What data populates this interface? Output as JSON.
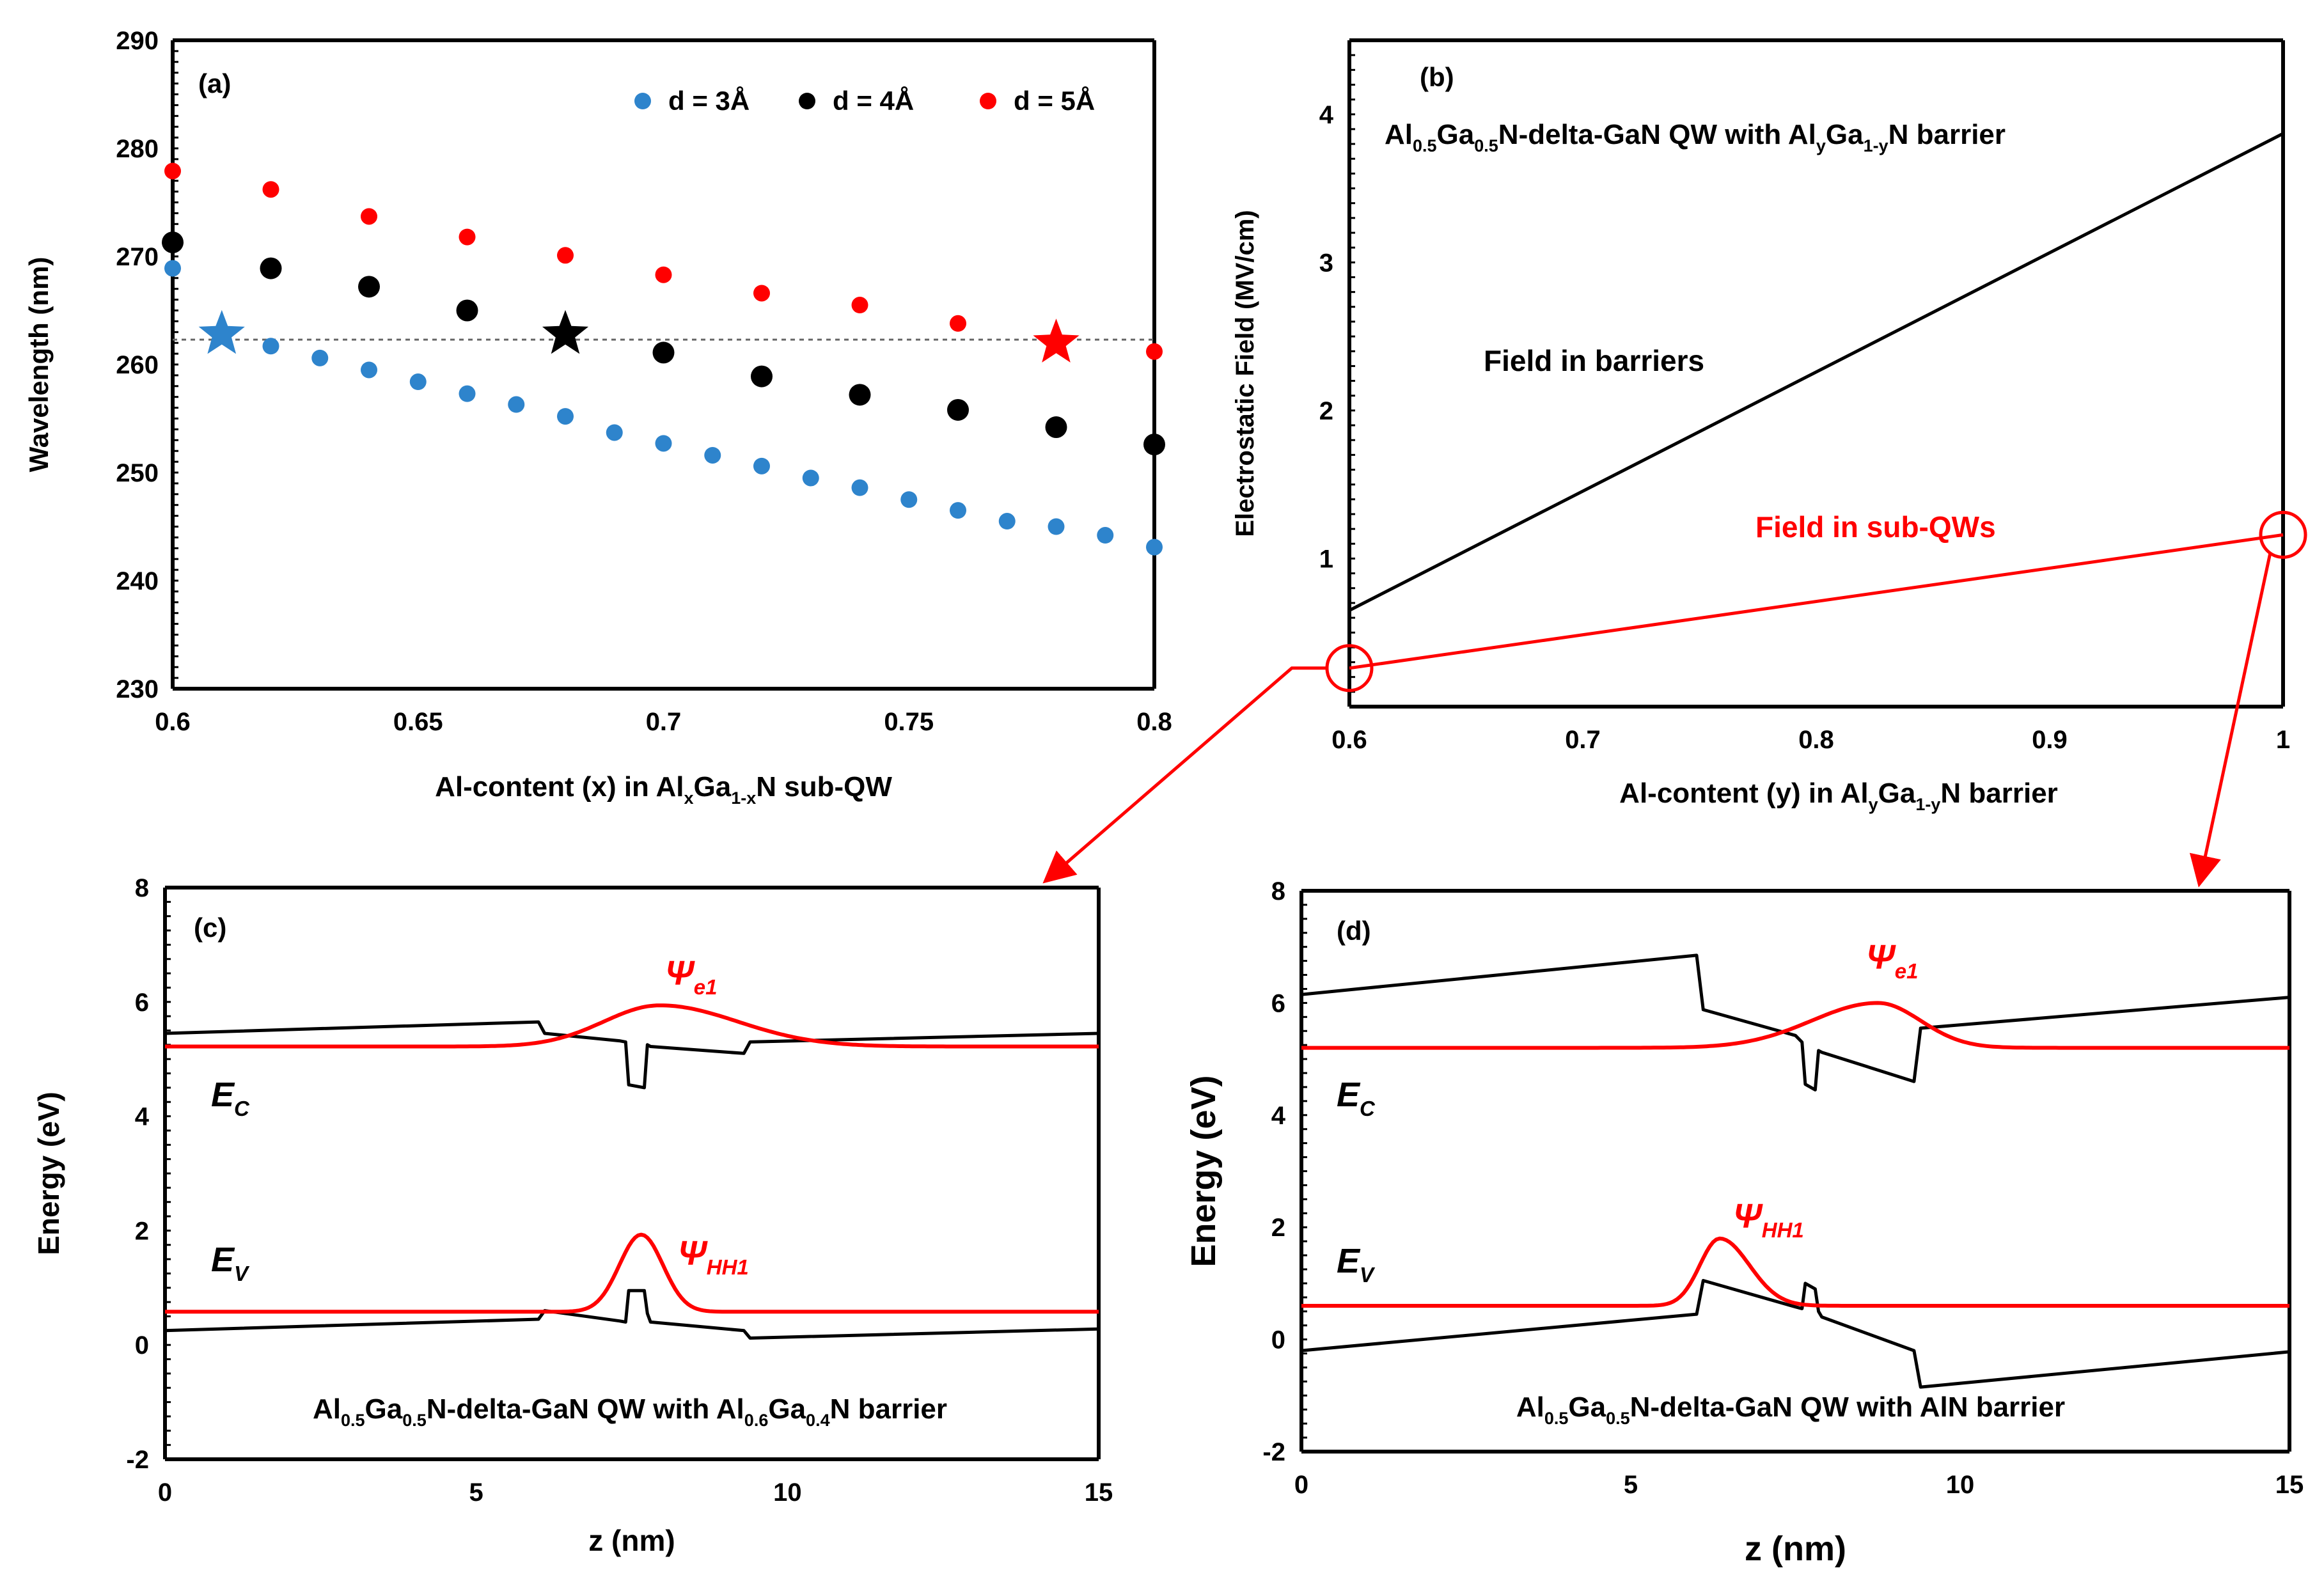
{
  "chart_data": [
    {
      "panel": "(a)",
      "type": "scatter",
      "xlabel_parts": [
        "Al-content (x) in Al",
        "x",
        "Ga",
        "1-x",
        "N sub-QW"
      ],
      "ylabel": "Wavelength (nm)",
      "xlim": [
        0.6,
        0.8
      ],
      "ylim": [
        230,
        290
      ],
      "xticks": [
        "0.6",
        "0.65",
        "0.7",
        "0.75",
        "0.8"
      ],
      "yticks": [
        "230",
        "240",
        "250",
        "260",
        "270",
        "280",
        "290"
      ],
      "reference_line_y": 262.3,
      "series": [
        {
          "name": "d = 3Å",
          "color": "#2e84cc",
          "x": [
            0.6,
            0.62,
            0.63,
            0.64,
            0.65,
            0.66,
            0.67,
            0.68,
            0.69,
            0.7,
            0.71,
            0.72,
            0.73,
            0.74,
            0.75,
            0.76,
            0.77,
            0.78,
            0.79,
            0.8
          ],
          "y": [
            268.9,
            261.7,
            260.6,
            259.5,
            258.4,
            257.3,
            256.3,
            255.2,
            253.7,
            252.7,
            251.6,
            250.6,
            249.5,
            248.6,
            247.5,
            246.5,
            245.5,
            245.0,
            244.2,
            243.1
          ]
        },
        {
          "name": "d = 4Å",
          "color": "#000000",
          "x": [
            0.6,
            0.62,
            0.64,
            0.66,
            0.7,
            0.72,
            0.74,
            0.76,
            0.78,
            0.8
          ],
          "y": [
            271.3,
            268.9,
            267.2,
            265.0,
            261.1,
            258.9,
            257.2,
            255.8,
            254.2,
            252.6
          ]
        },
        {
          "name": "d = 5Å",
          "color": "#ff0000",
          "x": [
            0.6,
            0.62,
            0.64,
            0.66,
            0.68,
            0.7,
            0.72,
            0.74,
            0.76,
            0.8
          ],
          "y": [
            277.9,
            276.2,
            273.7,
            271.8,
            270.1,
            268.3,
            266.6,
            265.5,
            263.8,
            261.2
          ]
        }
      ],
      "stars": [
        {
          "series": "d = 3Å",
          "x": 0.61,
          "y": 262.8,
          "color": "#2e84cc"
        },
        {
          "series": "d = 4Å",
          "x": 0.68,
          "y": 262.8,
          "color": "#000000"
        },
        {
          "series": "d = 5Å",
          "x": 0.78,
          "y": 262.0,
          "color": "#ff0000"
        }
      ]
    },
    {
      "panel": "(b)",
      "type": "line",
      "title_parts": [
        "Al",
        "0.5",
        "Ga",
        "0.5",
        "N-delta-GaN QW with Al",
        "y",
        "Ga",
        "1-y",
        "N barrier"
      ],
      "xlabel_parts": [
        "Al-content (y) in Al",
        "y",
        "Ga",
        "1-y",
        "N barrier"
      ],
      "ylabel": "Electrostatic Field (MV/cm)",
      "xlim": [
        0.6,
        1.0
      ],
      "ylim": [
        0,
        4.5
      ],
      "xticks": [
        "0.6",
        "0.7",
        "0.8",
        "0.9",
        "1"
      ],
      "yticks": [
        "1",
        "2",
        "3",
        "4"
      ],
      "series": [
        {
          "name": "Field in barriers",
          "color": "#000000",
          "x": [
            0.6,
            1.0
          ],
          "y": [
            0.65,
            3.87
          ]
        },
        {
          "name": "Field in sub-QWs",
          "color": "#ff0000",
          "x": [
            0.6,
            1.0
          ],
          "y": [
            0.26,
            1.16
          ]
        }
      ],
      "circles": [
        {
          "x": 0.6,
          "y": 0.26
        },
        {
          "x": 1.0,
          "y": 1.16
        }
      ]
    },
    {
      "panel": "(c)",
      "type": "line",
      "xlabel": "z (nm)",
      "ylabel": "Energy (eV)",
      "xlim": [
        0,
        15
      ],
      "ylim": [
        -2,
        8
      ],
      "xticks": [
        "0",
        "5",
        "10",
        "15"
      ],
      "yticks": [
        "-2",
        "0",
        "2",
        "4",
        "6",
        "8"
      ],
      "caption_parts": [
        "Al",
        "0.5",
        "Ga",
        "0.5",
        "N-delta-GaN QW  with Al",
        "0.6",
        "Ga",
        "0.4",
        "N barrier"
      ],
      "band_labels": {
        "conduction": {
          "main": "E",
          "sub": "C"
        },
        "valence": {
          "main": "E",
          "sub": "V"
        }
      },
      "wave_labels": {
        "electron": {
          "main": "Ψ",
          "sub": "e1"
        },
        "hole": {
          "main": "Ψ",
          "sub": "HH1"
        }
      },
      "series": [
        {
          "name": "Ec",
          "color": "#000000",
          "x": [
            0,
            6.0,
            6.1,
            7.3,
            7.4,
            7.45,
            7.7,
            7.75,
            7.8,
            9.3,
            9.4,
            15
          ],
          "y": [
            5.45,
            5.65,
            5.45,
            5.32,
            5.3,
            4.55,
            4.5,
            5.25,
            5.22,
            5.1,
            5.3,
            5.45
          ]
        },
        {
          "name": "Ev",
          "color": "#000000",
          "x": [
            0,
            6.0,
            6.1,
            7.3,
            7.4,
            7.45,
            7.7,
            7.75,
            7.8,
            9.3,
            9.4,
            15
          ],
          "y": [
            0.25,
            0.45,
            0.6,
            0.42,
            0.4,
            0.95,
            0.95,
            0.55,
            0.4,
            0.25,
            0.12,
            0.28
          ]
        },
        {
          "name": "psi_e1",
          "color": "#ff0000",
          "baseline": 5.22,
          "peak": 5.94,
          "center": 7.95,
          "sigma_left": 0.9,
          "sigma_right": 1.25
        },
        {
          "name": "psi_HH1",
          "color": "#ff0000",
          "baseline": 0.58,
          "peak": 1.93,
          "center": 7.65,
          "sigma_left": 0.35,
          "sigma_right": 0.35
        }
      ]
    },
    {
      "panel": "(d)",
      "type": "line",
      "xlabel": "z (nm)",
      "ylabel": "Energy (eV)",
      "xlim": [
        0,
        15
      ],
      "ylim": [
        -2,
        8
      ],
      "xticks": [
        "0",
        "5",
        "10",
        "15"
      ],
      "yticks": [
        "-2",
        "0",
        "2",
        "4",
        "6",
        "8"
      ],
      "caption": "Al0.5Ga0.5N-delta-GaN  QW  with AlN barrier",
      "caption_parts": [
        "Al",
        "0.5",
        "Ga",
        "0.5",
        "N-delta-GaN  QW  with AlN barrier"
      ],
      "band_labels": {
        "conduction": {
          "main": "E",
          "sub": "C"
        },
        "valence": {
          "main": "E",
          "sub": "V"
        }
      },
      "wave_labels": {
        "electron": {
          "main": "Ψ",
          "sub": "e1"
        },
        "hole": {
          "main": "Ψ",
          "sub": "HH1"
        }
      },
      "series": [
        {
          "name": "Ec",
          "color": "#000000",
          "x": [
            0,
            6.0,
            6.1,
            7.5,
            7.6,
            7.65,
            7.8,
            7.85,
            7.9,
            9.3,
            9.4,
            15
          ],
          "y": [
            6.15,
            6.85,
            5.88,
            5.42,
            5.3,
            4.55,
            4.45,
            5.15,
            5.12,
            4.6,
            5.55,
            6.1
          ]
        },
        {
          "name": "Ev",
          "color": "#000000",
          "x": [
            0,
            6.0,
            6.1,
            7.5,
            7.6,
            7.65,
            7.8,
            7.85,
            7.9,
            9.3,
            9.4,
            15
          ],
          "y": [
            -0.2,
            0.45,
            1.05,
            0.58,
            0.55,
            1.0,
            0.9,
            0.5,
            0.4,
            -0.2,
            -0.85,
            -0.22
          ]
        },
        {
          "name": "psi_e1",
          "color": "#ff0000",
          "baseline": 5.2,
          "peak": 6.0,
          "center": 8.75,
          "sigma_left": 1.0,
          "sigma_right": 0.65
        },
        {
          "name": "psi_HH1",
          "color": "#ff0000",
          "baseline": 0.6,
          "peak": 1.8,
          "center": 6.35,
          "sigma_left": 0.3,
          "sigma_right": 0.45
        }
      ]
    }
  ]
}
